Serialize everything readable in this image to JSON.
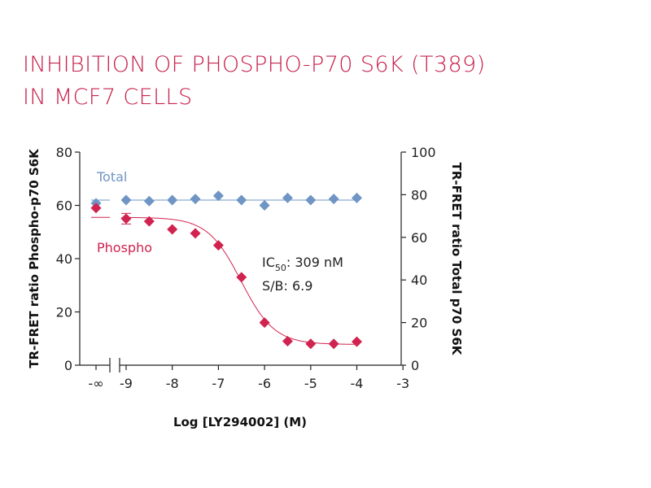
{
  "title": {
    "line1": "INHIBITION OF PHOSPHO-P70 S6K (T389)",
    "line2": "IN MCF7 CELLS"
  },
  "annotation": {
    "ic50_label": "IC",
    "ic50_sub": "50",
    "ic50_value": ": 309 nM",
    "sb": "S/B: 6.9"
  },
  "colors": {
    "title": "#c8234d",
    "phospho": "#d0234f",
    "total": "#6f95c4",
    "axis": "#222222"
  },
  "chart_data": {
    "type": "scatter",
    "xlabel": "Log [LY294002] (M)",
    "ylabel_left": "TR-FRET ratio Phospho-p70 S6K",
    "ylabel_right": "TR-FRET ratio Total p70 S6K",
    "xlim": [
      -9.5,
      -3
    ],
    "x_ticks": [
      "-9",
      "-8",
      "-7",
      "-6",
      "-5",
      "-4",
      "-3"
    ],
    "x_tick_values": [
      -9,
      -8,
      -7,
      -6,
      -5,
      -4,
      -3
    ],
    "x_break_label": "-∞",
    "ylim_left": [
      0,
      80
    ],
    "y_ticks_left": [
      "0",
      "20",
      "40",
      "60",
      "80"
    ],
    "y_tick_values_left": [
      0,
      20,
      40,
      60,
      80
    ],
    "ylim_right": [
      0,
      100
    ],
    "y_ticks_right": [
      "0",
      "20",
      "40",
      "60",
      "80",
      "100"
    ],
    "y_tick_values_right": [
      0,
      20,
      40,
      60,
      80,
      100
    ],
    "series": [
      {
        "name": "Total",
        "axis": "right",
        "color": "#6f95c4",
        "zero_dose_value": 76,
        "x": [
          -9,
          -8.5,
          -8,
          -7.5,
          -7,
          -6.5,
          -6,
          -5.5,
          -5,
          -4.5,
          -4
        ],
        "y": [
          77.5,
          77,
          77.5,
          78,
          79.5,
          77.5,
          75,
          78.5,
          77.5,
          78,
          78.5
        ]
      },
      {
        "name": "Phospho",
        "axis": "left",
        "color": "#d0234f",
        "zero_dose_value": 59,
        "x": [
          -9,
          -8.5,
          -8,
          -7.5,
          -7,
          -6.5,
          -6,
          -5.5,
          -5,
          -4.5,
          -4
        ],
        "y": [
          55,
          54,
          51,
          49.5,
          45,
          33,
          16,
          9,
          8,
          8,
          8.8
        ]
      }
    ],
    "fit": {
      "phospho": {
        "top": 55.5,
        "bottom": 7.8,
        "log_ic50": -6.51,
        "hill": 1.2
      },
      "total_mean_right": 77.5
    }
  }
}
